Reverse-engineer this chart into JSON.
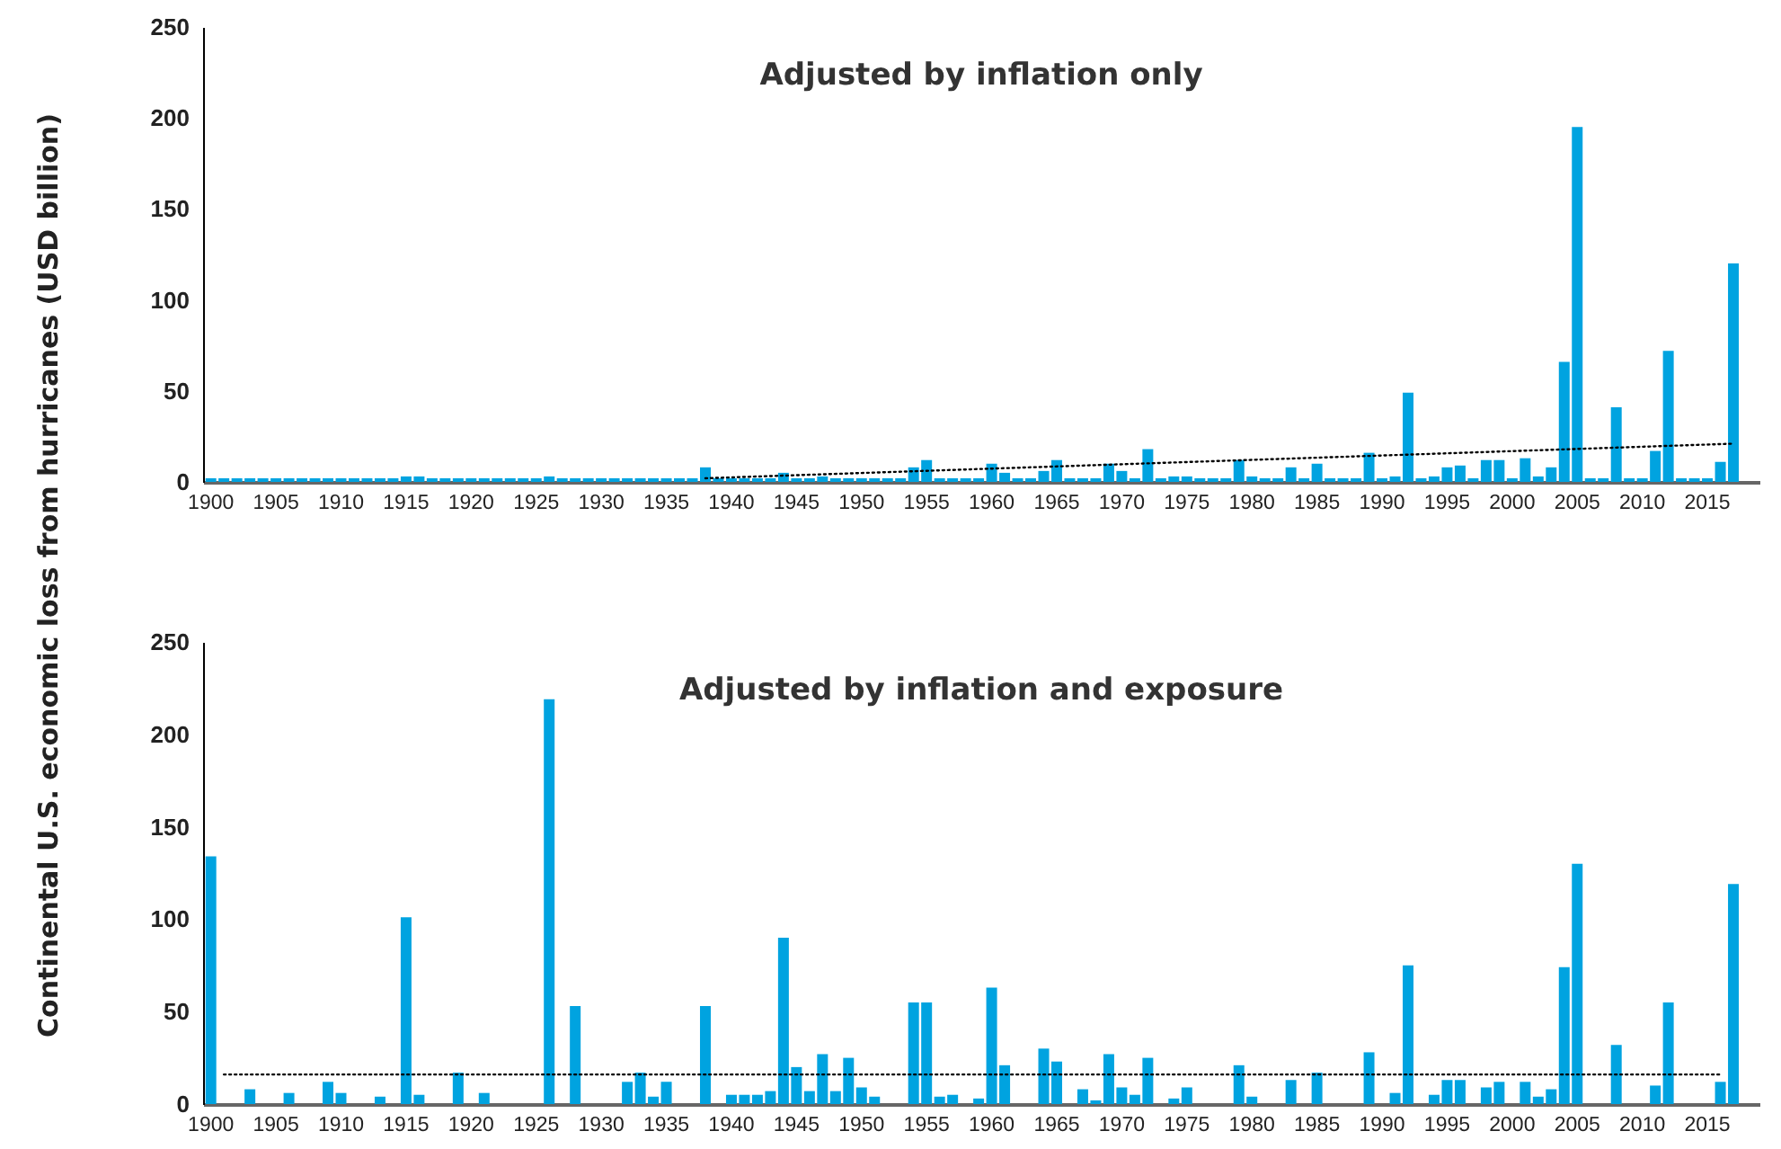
{
  "chart_data": [
    {
      "type": "bar",
      "title": "Adjusted  by inflation only",
      "ylabel": "Continental U.S. economic loss from hurricanes (USD billion)",
      "xlim": [
        1899.4,
        2019
      ],
      "xticks": [
        1900,
        1905,
        1910,
        1915,
        1920,
        1925,
        1930,
        1935,
        1940,
        1945,
        1950,
        1955,
        1960,
        1965,
        1970,
        1975,
        1980,
        1985,
        1990,
        1995,
        2000,
        2005,
        2010,
        2015
      ],
      "ylim": [
        0,
        250
      ],
      "yticks": [
        0,
        50,
        100,
        150,
        200,
        250
      ],
      "series": [
        {
          "color": "#00a3e0",
          "x": [
            1900,
            1901,
            1902,
            1903,
            1904,
            1905,
            1906,
            1907,
            1908,
            1909,
            1910,
            1911,
            1912,
            1913,
            1914,
            1915,
            1916,
            1917,
            1918,
            1919,
            1920,
            1921,
            1922,
            1923,
            1924,
            1925,
            1926,
            1927,
            1928,
            1929,
            1930,
            1931,
            1932,
            1933,
            1934,
            1935,
            1936,
            1937,
            1938,
            1939,
            1940,
            1941,
            1942,
            1943,
            1944,
            1945,
            1946,
            1947,
            1948,
            1949,
            1950,
            1951,
            1952,
            1953,
            1954,
            1955,
            1956,
            1957,
            1958,
            1959,
            1960,
            1961,
            1962,
            1963,
            1964,
            1965,
            1966,
            1967,
            1968,
            1969,
            1970,
            1971,
            1972,
            1973,
            1974,
            1975,
            1976,
            1977,
            1978,
            1979,
            1980,
            1981,
            1982,
            1983,
            1984,
            1985,
            1986,
            1987,
            1988,
            1989,
            1990,
            1991,
            1992,
            1993,
            1994,
            1995,
            1996,
            1997,
            1998,
            1999,
            2000,
            2001,
            2002,
            2003,
            2004,
            2005,
            2006,
            2007,
            2008,
            2009,
            2010,
            2011,
            2012,
            2013,
            2014,
            2015,
            2016,
            2017
          ],
          "values": [
            2,
            2,
            2,
            2,
            2,
            2,
            2,
            2,
            2,
            2,
            2,
            2,
            2,
            2,
            2,
            3,
            3,
            2,
            2,
            2,
            2,
            2,
            2,
            2,
            2,
            2,
            3,
            2,
            2,
            2,
            2,
            2,
            2,
            2,
            2,
            2,
            2,
            2,
            8,
            2,
            2,
            2,
            2,
            2,
            5,
            2,
            2,
            3,
            2,
            2,
            2,
            2,
            2,
            2,
            8,
            12,
            2,
            2,
            2,
            2,
            10,
            5,
            2,
            2,
            6,
            12,
            2,
            2,
            2,
            10,
            6,
            2,
            18,
            2,
            3,
            3,
            2,
            2,
            2,
            12,
            3,
            2,
            2,
            8,
            2,
            10,
            2,
            2,
            2,
            16,
            2,
            3,
            49,
            2,
            3,
            8,
            9,
            2,
            12,
            12,
            2,
            13,
            3,
            8,
            66,
            195,
            2,
            2,
            41,
            2,
            2,
            17,
            72,
            2,
            2,
            2,
            11,
            120
          ]
        },
        {
          "type": "line",
          "color": "#000000",
          "line_style": "dotted",
          "x": [
            1938,
            2017
          ],
          "values": [
            2,
            21
          ]
        }
      ]
    },
    {
      "type": "bar",
      "title": "Adjusted by inflation and exposure",
      "xlim": [
        1899.4,
        2019
      ],
      "xticks": [
        1900,
        1905,
        1910,
        1915,
        1920,
        1925,
        1930,
        1935,
        1940,
        1945,
        1950,
        1955,
        1960,
        1965,
        1970,
        1975,
        1980,
        1985,
        1990,
        1995,
        2000,
        2005,
        2010,
        2015
      ],
      "ylim": [
        0,
        250
      ],
      "yticks": [
        0,
        50,
        100,
        150,
        200,
        250
      ],
      "series": [
        {
          "color": "#00a3e0",
          "x": [
            1900,
            1901,
            1902,
            1903,
            1904,
            1905,
            1906,
            1907,
            1908,
            1909,
            1910,
            1911,
            1912,
            1913,
            1914,
            1915,
            1916,
            1917,
            1918,
            1919,
            1920,
            1921,
            1922,
            1923,
            1924,
            1925,
            1926,
            1927,
            1928,
            1929,
            1930,
            1931,
            1932,
            1933,
            1934,
            1935,
            1936,
            1937,
            1938,
            1939,
            1940,
            1941,
            1942,
            1943,
            1944,
            1945,
            1946,
            1947,
            1948,
            1949,
            1950,
            1951,
            1952,
            1953,
            1954,
            1955,
            1956,
            1957,
            1958,
            1959,
            1960,
            1961,
            1962,
            1963,
            1964,
            1965,
            1966,
            1967,
            1968,
            1969,
            1970,
            1971,
            1972,
            1973,
            1974,
            1975,
            1976,
            1977,
            1978,
            1979,
            1980,
            1981,
            1982,
            1983,
            1984,
            1985,
            1986,
            1987,
            1988,
            1989,
            1990,
            1991,
            1992,
            1993,
            1994,
            1995,
            1996,
            1997,
            1998,
            1999,
            2000,
            2001,
            2002,
            2003,
            2004,
            2005,
            2006,
            2007,
            2008,
            2009,
            2010,
            2011,
            2012,
            2013,
            2014,
            2015,
            2016,
            2017
          ],
          "values": [
            134,
            null,
            null,
            8,
            null,
            null,
            6,
            null,
            null,
            12,
            6,
            null,
            null,
            4,
            null,
            101,
            5,
            null,
            null,
            17,
            null,
            6,
            null,
            null,
            null,
            null,
            219,
            null,
            53,
            null,
            null,
            null,
            12,
            17,
            4,
            12,
            null,
            null,
            53,
            null,
            5,
            5,
            5,
            7,
            90,
            20,
            7,
            27,
            7,
            25,
            9,
            4,
            null,
            null,
            55,
            55,
            4,
            5,
            null,
            3,
            63,
            21,
            null,
            null,
            30,
            23,
            null,
            8,
            2,
            27,
            9,
            5,
            25,
            null,
            3,
            9,
            null,
            null,
            null,
            21,
            4,
            null,
            null,
            13,
            null,
            17,
            null,
            null,
            null,
            28,
            null,
            6,
            75,
            null,
            5,
            13,
            13,
            null,
            9,
            12,
            null,
            12,
            4,
            8,
            74,
            130,
            null,
            null,
            32,
            null,
            null,
            10,
            55,
            null,
            null,
            null,
            12,
            119
          ]
        },
        {
          "type": "line",
          "color": "#000000",
          "line_style": "dotted",
          "x": [
            1901,
            2016
          ],
          "values": [
            16,
            16
          ]
        }
      ]
    }
  ]
}
